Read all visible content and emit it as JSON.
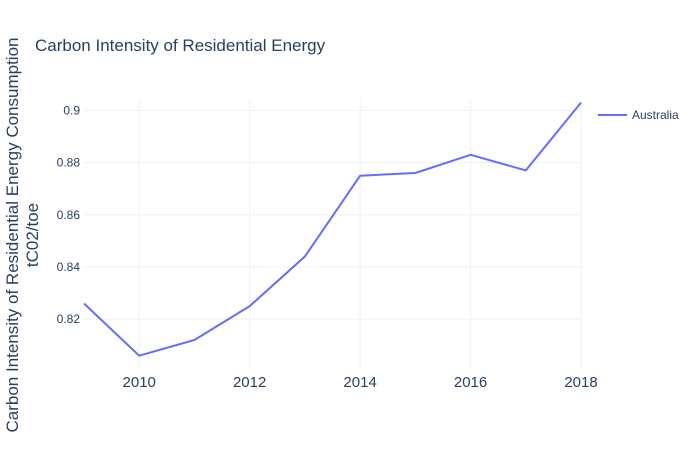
{
  "chart_data": {
    "type": "line",
    "title": "Carbon Intensity of Residential Energy",
    "xlabel": "",
    "ylabel_lines": [
      "Carbon Intensity of Residential Energy Consumption",
      "tC02/toe"
    ],
    "x": [
      2009,
      2010,
      2011,
      2012,
      2013,
      2014,
      2015,
      2016,
      2017,
      2018
    ],
    "xlim": [
      2009,
      2018
    ],
    "ylim": [
      0.8005,
      0.904
    ],
    "x_ticks": [
      2010,
      2012,
      2014,
      2016,
      2018
    ],
    "y_ticks": [
      0.82,
      0.84,
      0.86,
      0.88,
      0.9
    ],
    "y_tick_labels": [
      "0.82",
      "0.84",
      "0.86",
      "0.88",
      "0.9"
    ],
    "grid": true,
    "legend_position": "top-right",
    "series": [
      {
        "name": "Australia",
        "color": "#636efa",
        "values": [
          0.826,
          0.806,
          0.812,
          0.825,
          0.844,
          0.875,
          0.876,
          0.883,
          0.877,
          0.903
        ]
      }
    ]
  }
}
